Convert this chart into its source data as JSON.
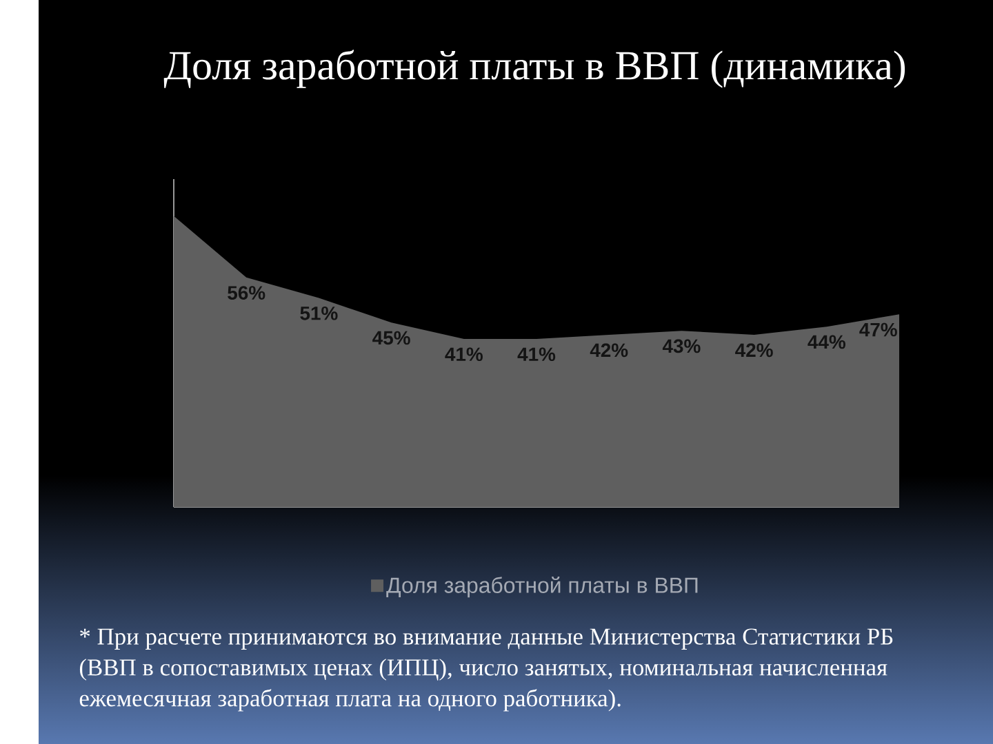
{
  "chart_data": {
    "type": "area",
    "title": "Доля заработной платы в ВВП (динамика)",
    "categories": [
      null,
      null,
      null,
      null,
      null,
      null,
      null,
      null,
      null,
      null,
      null
    ],
    "series": [
      {
        "name": "Доля заработной платы в ВВП",
        "color": "#5f5f5f",
        "values": [
          71,
          56,
          51,
          45,
          41,
          41,
          42,
          43,
          42,
          44,
          47
        ],
        "value_labels": [
          null,
          "56%",
          "51%",
          "45%",
          "41%",
          "41%",
          "42%",
          "43%",
          "42%",
          "44%",
          "47%"
        ]
      }
    ],
    "ylim": [
      0,
      80
    ],
    "legend": "bottom",
    "annotations": [
      "* При расчете принимаются во внимание данные Министерства Статистики РБ (ВВП в сопоставимых ценах (ИПЦ), число занятых, номинальная начисленная ежемесячная заработная плата на одного работника)."
    ]
  }
}
